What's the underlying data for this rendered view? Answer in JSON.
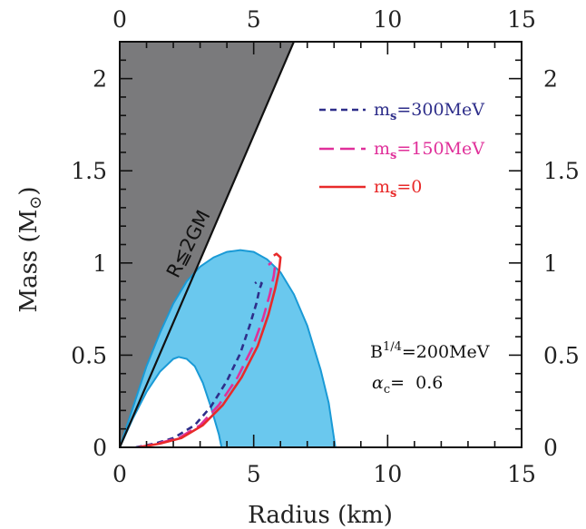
{
  "chart_data": {
    "type": "line",
    "xlabel": "Radius (km)",
    "ylabel": "Mass (M",
    "ylabel_symbol": "⊙",
    "ylabel_close": ")",
    "xlim": [
      0,
      15
    ],
    "ylim": [
      0,
      2.2
    ],
    "x_ticks": [
      0,
      5,
      10,
      15
    ],
    "y_ticks": [
      0,
      0.5,
      1,
      1.5,
      2
    ],
    "x_tick_labels": [
      "0",
      "5",
      "10",
      "15"
    ],
    "y_tick_labels": [
      "0",
      "0.5",
      "1",
      "1.5",
      "2"
    ],
    "grid": false,
    "legend_position": "top-right",
    "forbidden_region": {
      "label": "R≦2GM",
      "color": "#7a7a7c",
      "boundary": [
        [
          0,
          0
        ],
        [
          6.5,
          2.2
        ]
      ]
    },
    "allowed_band": {
      "color": "#6ac8ee",
      "outer": [
        [
          0,
          0
        ],
        [
          0.5,
          0.22
        ],
        [
          1,
          0.44
        ],
        [
          1.5,
          0.62
        ],
        [
          2,
          0.78
        ],
        [
          2.5,
          0.9
        ],
        [
          3,
          0.98
        ],
        [
          3.5,
          1.03
        ],
        [
          4,
          1.06
        ],
        [
          4.5,
          1.07
        ],
        [
          5,
          1.06
        ],
        [
          5.5,
          1.02
        ],
        [
          6,
          0.95
        ],
        [
          6.5,
          0.83
        ],
        [
          7,
          0.66
        ],
        [
          7.5,
          0.42
        ],
        [
          7.8,
          0.24
        ],
        [
          8.05,
          0
        ]
      ],
      "inner": [
        [
          0,
          0
        ],
        [
          0.5,
          0.16
        ],
        [
          1,
          0.3
        ],
        [
          1.5,
          0.41
        ],
        [
          2,
          0.48
        ],
        [
          2.2,
          0.49
        ],
        [
          2.5,
          0.48
        ],
        [
          2.8,
          0.44
        ],
        [
          3.1,
          0.35
        ],
        [
          3.4,
          0.22
        ],
        [
          3.7,
          0.07
        ],
        [
          3.8,
          0
        ]
      ]
    },
    "series": [
      {
        "name": "m_s=300MeV",
        "label_main": "m",
        "label_sub": "s",
        "label_rest": "=300MeV",
        "color": "#2e2e8a",
        "dash": "dashed",
        "values": [
          [
            0.6,
            0
          ],
          [
            1.3,
            0.02
          ],
          [
            2.0,
            0.05
          ],
          [
            2.8,
            0.12
          ],
          [
            3.4,
            0.22
          ],
          [
            4.0,
            0.36
          ],
          [
            4.5,
            0.51
          ],
          [
            4.85,
            0.66
          ],
          [
            5.1,
            0.78
          ],
          [
            5.22,
            0.86
          ],
          [
            5.3,
            0.89
          ],
          [
            5.15,
            0.9
          ],
          [
            5.05,
            0.89
          ]
        ]
      },
      {
        "name": "m_s=150MeV",
        "label_main": "m",
        "label_sub": "s",
        "label_rest": "=150MeV",
        "color": "#e0309a",
        "dash": "long-dashed",
        "values": [
          [
            0.7,
            0
          ],
          [
            1.4,
            0.02
          ],
          [
            2.2,
            0.05
          ],
          [
            3.0,
            0.12
          ],
          [
            3.7,
            0.23
          ],
          [
            4.4,
            0.38
          ],
          [
            4.95,
            0.54
          ],
          [
            5.35,
            0.7
          ],
          [
            5.6,
            0.83
          ],
          [
            5.75,
            0.93
          ],
          [
            5.8,
            0.99
          ],
          [
            5.65,
            1.0
          ],
          [
            5.55,
            0.99
          ]
        ]
      },
      {
        "name": "m_s=0",
        "label_main": "m",
        "label_sub": "s",
        "label_rest": "=0",
        "color": "#e82a2a",
        "dash": "solid",
        "values": [
          [
            0.7,
            0
          ],
          [
            1.5,
            0.02
          ],
          [
            2.3,
            0.05
          ],
          [
            3.1,
            0.12
          ],
          [
            3.85,
            0.23
          ],
          [
            4.55,
            0.38
          ],
          [
            5.15,
            0.55
          ],
          [
            5.55,
            0.72
          ],
          [
            5.8,
            0.86
          ],
          [
            5.95,
            0.96
          ],
          [
            6.0,
            1.03
          ],
          [
            5.85,
            1.05
          ],
          [
            5.75,
            1.04
          ]
        ]
      }
    ],
    "annotations": {
      "bag_constant_base": "B",
      "bag_constant_exp": "1/4",
      "bag_constant_rest": "=200MeV",
      "alpha_symbol": "α",
      "alpha_sub": "c",
      "alpha_rest": "=  0.6"
    }
  }
}
